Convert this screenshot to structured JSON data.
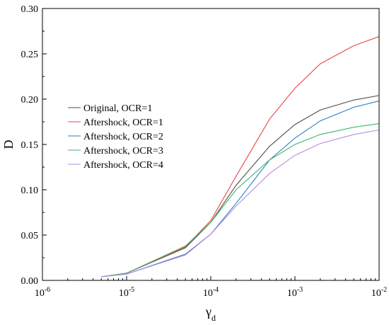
{
  "chart_data": {
    "type": "line",
    "xscale": "log",
    "xlim": [
      1e-06,
      0.01
    ],
    "ylim": [
      0,
      0.3
    ],
    "grid": false,
    "xlabel": "γ",
    "xlabel_subscript": "d",
    "ylabel": "D",
    "legend_position": "center-left",
    "x_ticks": [
      {
        "value": 1e-06,
        "base": "10",
        "exp": "-6"
      },
      {
        "value": 1e-05,
        "base": "10",
        "exp": "-5"
      },
      {
        "value": 0.0001,
        "base": "10",
        "exp": "-4"
      },
      {
        "value": 0.001,
        "base": "10",
        "exp": "-3"
      },
      {
        "value": 0.01,
        "base": "10",
        "exp": "-2"
      }
    ],
    "y_ticks": [
      {
        "value": 0.0,
        "label": "0.00"
      },
      {
        "value": 0.05,
        "label": "0.05"
      },
      {
        "value": 0.1,
        "label": "0.10"
      },
      {
        "value": 0.15,
        "label": "0.15"
      },
      {
        "value": 0.2,
        "label": "0.20"
      },
      {
        "value": 0.25,
        "label": "0.25"
      },
      {
        "value": 0.3,
        "label": "0.30"
      }
    ],
    "x": [
      5e-06,
      1e-05,
      5e-05,
      0.0001,
      0.0002,
      0.0005,
      0.001,
      0.002,
      0.005,
      0.01
    ],
    "series": [
      {
        "name": "Original, OCR=1",
        "color": "#4d4d4d",
        "values": [
          0.004,
          0.008,
          0.036,
          0.064,
          0.105,
          0.148,
          0.172,
          0.188,
          0.199,
          0.204
        ]
      },
      {
        "name": "Aftershock, OCR=1",
        "color": "#e8474c",
        "values": [
          0.004,
          0.008,
          0.037,
          0.066,
          0.115,
          0.178,
          0.212,
          0.239,
          0.259,
          0.269
        ]
      },
      {
        "name": "Aftershock, OCR=2",
        "color": "#2a7fc9",
        "values": [
          0.004,
          0.007,
          0.029,
          0.051,
          0.085,
          0.133,
          0.157,
          0.176,
          0.191,
          0.198
        ]
      },
      {
        "name": "Aftershock, OCR=3",
        "color": "#3fb56b",
        "values": [
          0.004,
          0.008,
          0.038,
          0.064,
          0.1,
          0.133,
          0.15,
          0.161,
          0.169,
          0.173
        ]
      },
      {
        "name": "Aftershock, OCR=4",
        "color": "#b68be5",
        "values": [
          0.004,
          0.007,
          0.028,
          0.051,
          0.082,
          0.118,
          0.138,
          0.151,
          0.161,
          0.166
        ]
      }
    ]
  }
}
